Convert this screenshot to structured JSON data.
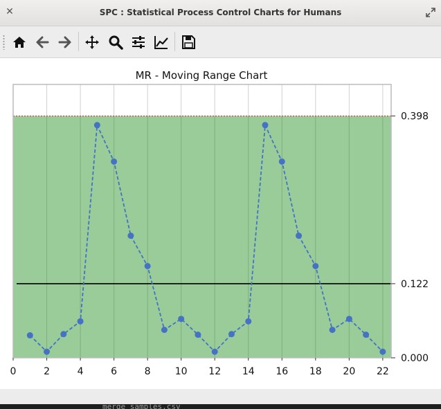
{
  "window": {
    "title": "SPC : Statistical Process Control Charts for Humans"
  },
  "toolbar": {
    "buttons": [
      {
        "name": "home",
        "icon": "home-icon"
      },
      {
        "name": "back",
        "icon": "arrow-left-icon"
      },
      {
        "name": "forward",
        "icon": "arrow-right-icon"
      },
      {
        "name": "pan",
        "icon": "move-icon"
      },
      {
        "name": "zoom",
        "icon": "magnifier-icon"
      },
      {
        "name": "configure-subplots",
        "icon": "sliders-icon"
      },
      {
        "name": "edit-axis",
        "icon": "line-chart-icon"
      },
      {
        "name": "save",
        "icon": "floppy-disk-icon"
      }
    ]
  },
  "chart_data": {
    "type": "line",
    "title": "MR - Moving Range Chart",
    "xlabel": "",
    "ylabel": "",
    "xlim": [
      0,
      22.5
    ],
    "ylim": [
      0,
      0.45
    ],
    "x_ticks": [
      0,
      2,
      4,
      6,
      8,
      10,
      12,
      14,
      16,
      18,
      20,
      22
    ],
    "x_tick_labels": [
      "0",
      "2",
      "4",
      "6",
      "8",
      "10",
      "12",
      "14",
      "16",
      "18",
      "20",
      "22"
    ],
    "right_axis_ticks": [
      0.0,
      0.122,
      0.398
    ],
    "right_axis_labels": [
      "0.000",
      "0.122",
      "0.398"
    ],
    "upper_control_limit": 0.398,
    "center_line": 0.122,
    "lower_control_limit": 0.0,
    "in_control_band_color": "#99cc99",
    "ucl_line_color": "#d9534f",
    "center_line_color": "#000000",
    "series_color": "#4472c4",
    "grid": true,
    "series": [
      {
        "x": [
          1,
          2,
          3,
          4,
          5,
          6,
          7,
          8,
          9,
          10,
          11,
          12,
          13,
          14,
          15,
          16,
          17,
          18,
          19,
          20,
          21,
          22
        ],
        "values": [
          0.037,
          0.01,
          0.039,
          0.06,
          0.383,
          0.323,
          0.201,
          0.151,
          0.046,
          0.064,
          0.038,
          0.01,
          0.039,
          0.06,
          0.383,
          0.323,
          0.201,
          0.151,
          0.046,
          0.064,
          0.038,
          0.01
        ]
      }
    ]
  },
  "terminal_bg": {
    "text": "merge_samples.csv"
  }
}
